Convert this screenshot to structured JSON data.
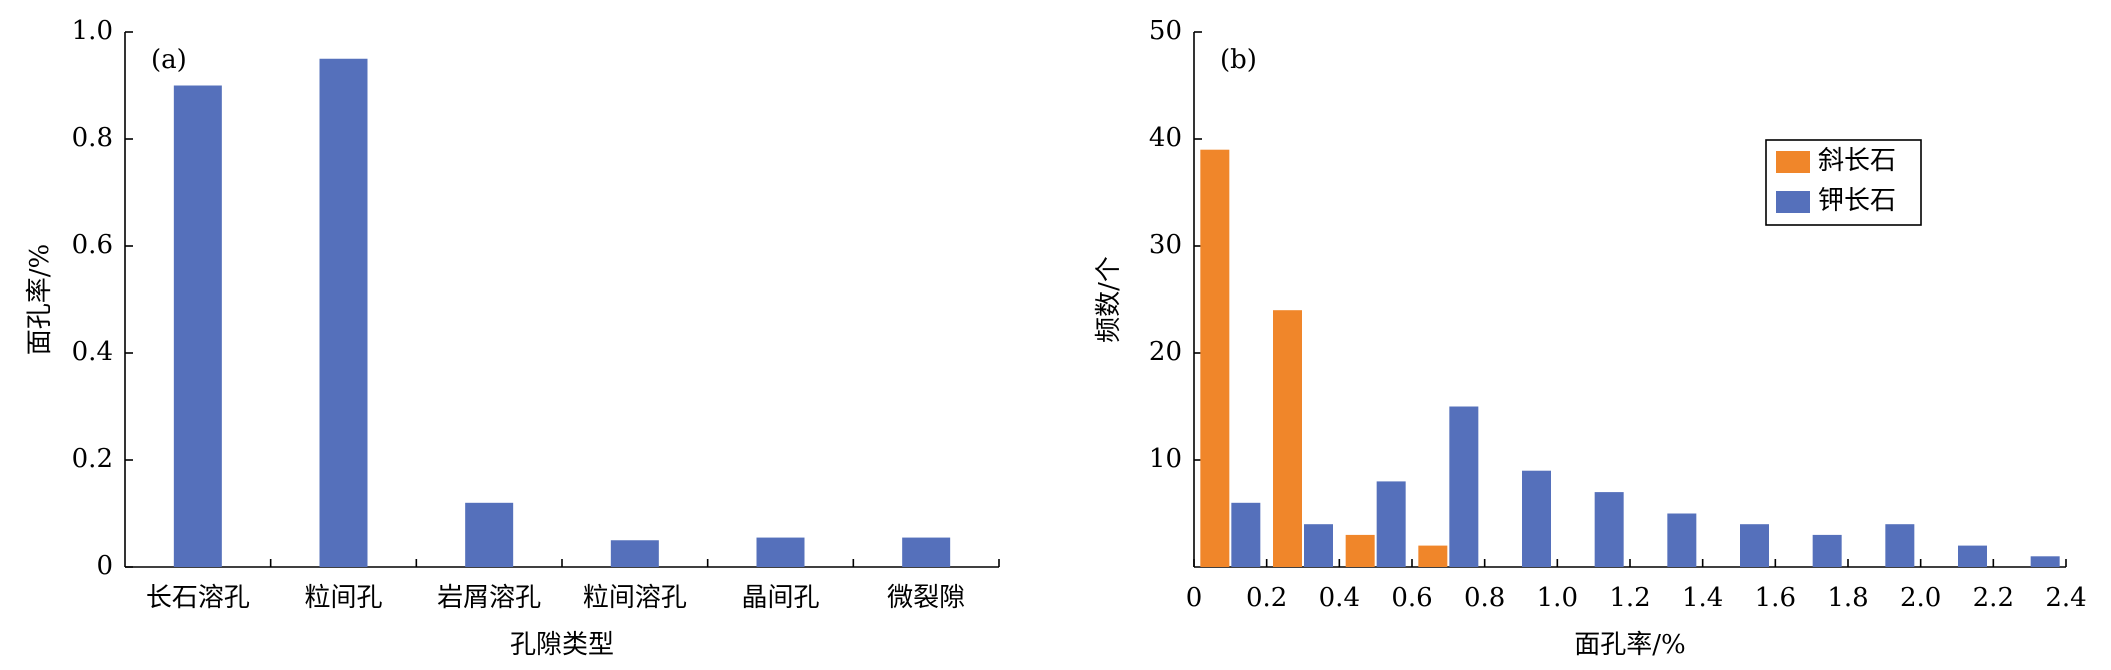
{
  "chart_data": [
    {
      "type": "bar",
      "annotation": "(a)",
      "xlabel": "孔隙类型",
      "ylabel": "面孔率/%",
      "categories": [
        "长石溶孔",
        "粒间孔",
        "岩屑溶孔",
        "粒间溶孔",
        "晶间孔",
        "微裂隙"
      ],
      "values": [
        0.9,
        0.95,
        0.12,
        0.05,
        0.055,
        0.055
      ],
      "color": "#5570bb",
      "ylim": [
        0,
        1
      ],
      "yticks": [
        0,
        0.2,
        0.4,
        0.6,
        0.8,
        {
          "value": 1,
          "label": "1.0"
        }
      ]
    },
    {
      "type": "grouped-bar",
      "annotation": "(b)",
      "xlabel": "面孔率/%",
      "ylabel": "频数/个",
      "x": [
        0.1,
        0.3,
        0.5,
        0.7,
        0.9,
        1.1,
        1.3,
        1.5,
        1.7,
        1.9,
        2.1,
        2.3
      ],
      "series": [
        {
          "name": "斜长石",
          "color": "#f0862a",
          "values": [
            39,
            24,
            3,
            2,
            null,
            null,
            null,
            null,
            null,
            null,
            null,
            null
          ]
        },
        {
          "name": "钾长石",
          "color": "#5570bb",
          "values": [
            6,
            4,
            8,
            15,
            9,
            7,
            5,
            4,
            3,
            4,
            2,
            1
          ]
        }
      ],
      "xlim": [
        0,
        2.4
      ],
      "xticks": [
        0,
        0.2,
        0.4,
        0.6,
        0.8,
        {
          "value": 1,
          "label": "1.0"
        },
        1.2,
        1.4,
        1.6,
        1.8,
        {
          "value": 2,
          "label": "2.0"
        },
        2.2,
        2.4
      ],
      "ylim": [
        0,
        50
      ],
      "yticks": [
        10,
        20,
        30,
        40,
        50
      ],
      "legend": "upper-right"
    }
  ]
}
